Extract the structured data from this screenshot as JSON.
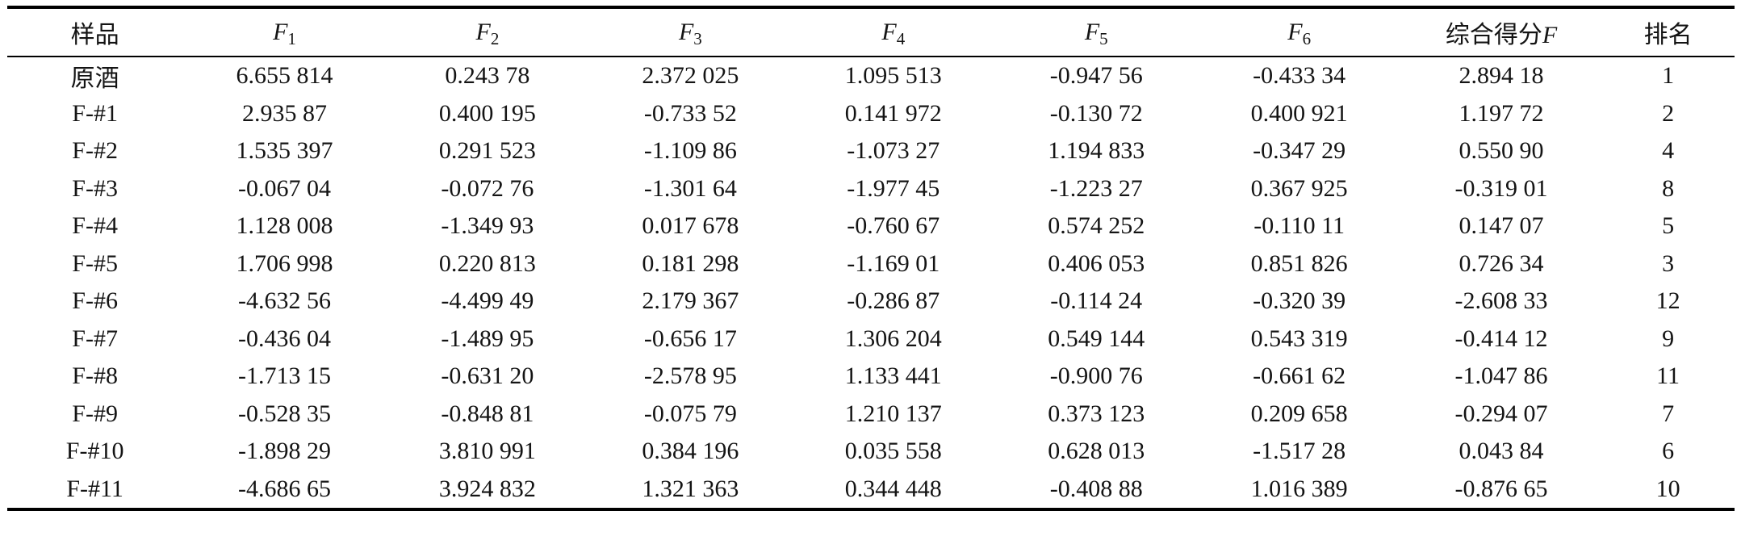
{
  "table": {
    "headers": {
      "sample": "样品",
      "factors": [
        {
          "base": "F",
          "sub": "1"
        },
        {
          "base": "F",
          "sub": "2"
        },
        {
          "base": "F",
          "sub": "3"
        },
        {
          "base": "F",
          "sub": "4"
        },
        {
          "base": "F",
          "sub": "5"
        },
        {
          "base": "F",
          "sub": "6"
        }
      ],
      "composite": {
        "text": "综合得分",
        "italic": "F"
      },
      "rank": "排名"
    },
    "rows": [
      {
        "sample": "原酒",
        "values": [
          "6.655 814",
          "0.243 78",
          "2.372 025",
          "1.095 513",
          "-0.947 56",
          "-0.433 34"
        ],
        "composite": "2.894 18",
        "rank": "1"
      },
      {
        "sample": "F-#1",
        "values": [
          "2.935 87",
          "0.400 195",
          "-0.733 52",
          "0.141 972",
          "-0.130 72",
          "0.400 921"
        ],
        "composite": "1.197 72",
        "rank": "2"
      },
      {
        "sample": "F-#2",
        "values": [
          "1.535 397",
          "0.291 523",
          "-1.109 86",
          "-1.073 27",
          "1.194 833",
          "-0.347 29"
        ],
        "composite": "0.550 90",
        "rank": "4"
      },
      {
        "sample": "F-#3",
        "values": [
          "-0.067 04",
          "-0.072 76",
          "-1.301 64",
          "-1.977 45",
          "-1.223 27",
          "0.367 925"
        ],
        "composite": "-0.319 01",
        "rank": "8"
      },
      {
        "sample": "F-#4",
        "values": [
          "1.128 008",
          "-1.349 93",
          "0.017 678",
          "-0.760 67",
          "0.574 252",
          "-0.110 11"
        ],
        "composite": "0.147 07",
        "rank": "5"
      },
      {
        "sample": "F-#5",
        "values": [
          "1.706 998",
          "0.220 813",
          "0.181 298",
          "-1.169 01",
          "0.406 053",
          "0.851 826"
        ],
        "composite": "0.726 34",
        "rank": "3"
      },
      {
        "sample": "F-#6",
        "values": [
          "-4.632 56",
          "-4.499 49",
          "2.179 367",
          "-0.286 87",
          "-0.114 24",
          "-0.320 39"
        ],
        "composite": "-2.608 33",
        "rank": "12"
      },
      {
        "sample": "F-#7",
        "values": [
          "-0.436 04",
          "-1.489 95",
          "-0.656 17",
          "1.306 204",
          "0.549 144",
          "0.543 319"
        ],
        "composite": "-0.414 12",
        "rank": "9"
      },
      {
        "sample": "F-#8",
        "values": [
          "-1.713 15",
          "-0.631 20",
          "-2.578 95",
          "1.133 441",
          "-0.900 76",
          "-0.661 62"
        ],
        "composite": "-1.047 86",
        "rank": "11"
      },
      {
        "sample": "F-#9",
        "values": [
          "-0.528 35",
          "-0.848 81",
          "-0.075 79",
          "1.210 137",
          "0.373 123",
          "0.209 658"
        ],
        "composite": "-0.294 07",
        "rank": "7"
      },
      {
        "sample": "F-#10",
        "values": [
          "-1.898 29",
          "3.810 991",
          "0.384 196",
          "0.035 558",
          "0.628 013",
          "-1.517 28"
        ],
        "composite": "0.043 84",
        "rank": "6"
      },
      {
        "sample": "F-#11",
        "values": [
          "-4.686 65",
          "3.924 832",
          "1.321 363",
          "0.344 448",
          "-0.408 88",
          "1.016 389"
        ],
        "composite": "-0.876 65",
        "rank": "10"
      }
    ]
  },
  "colors": {
    "text": "#141414",
    "rule": "#000000",
    "background": "#ffffff"
  }
}
